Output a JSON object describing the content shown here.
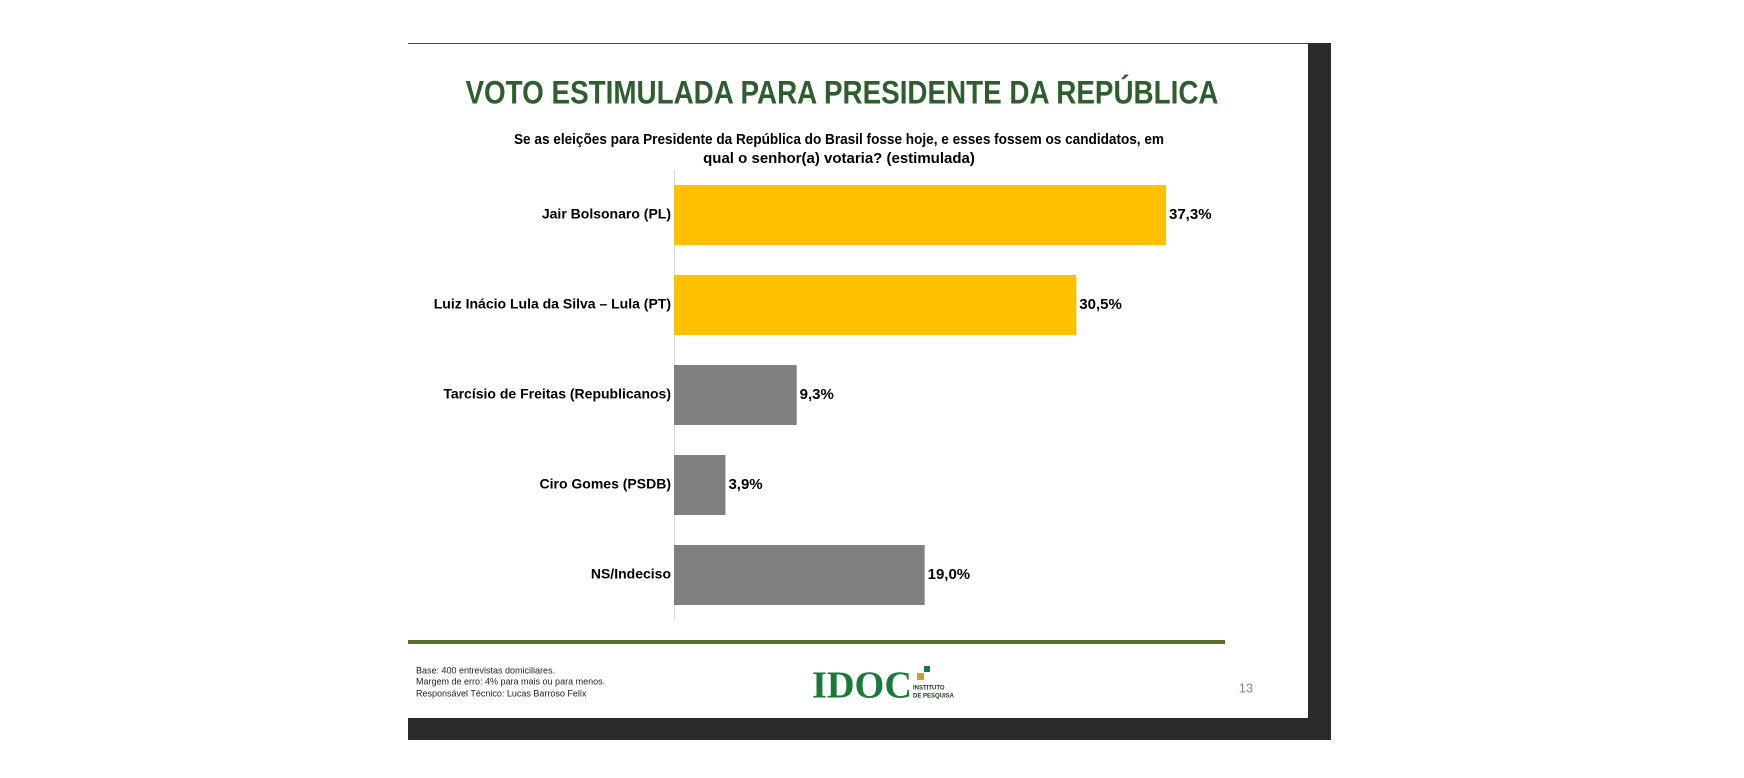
{
  "chart_data": {
    "type": "hbar",
    "title": "VOTO ESTIMULADA PARA PRESIDENTE DA REPÚBLICA",
    "subtitle": [
      "Se as eleições para Presidente da República do Brasil fosse hoje, e esses fossem os candidatos, em",
      "qual o senhor(a) votaria? (estimulada)"
    ],
    "categories": [
      "Jair Bolsonaro (PL)",
      "Luiz Inácio Lula da Silva – Lula (PT)",
      "Tarcísio de Freitas (Republicanos)",
      "Ciro Gomes (PSDB)",
      "NS/Indeciso"
    ],
    "values": [
      37.3,
      30.5,
      9.3,
      3.9,
      19.0
    ],
    "value_labels": [
      "37,3%",
      "30,5%",
      "9,3%",
      "3,9%",
      "19,0%"
    ],
    "colors": [
      "#ffc000",
      "#ffc000",
      "#808080",
      "#808080",
      "#808080"
    ]
  },
  "footer": {
    "notes": [
      "Base: 400 entrevistas domiciliares.",
      "Margem de erro: 4% para mais ou para menos.",
      "Responsável Técnico: Lucas Barroso Felix"
    ],
    "logo": "IDOC",
    "logo_sub": [
      "INSTITUTO",
      "DE PESQUISA"
    ],
    "page_number": "13"
  }
}
